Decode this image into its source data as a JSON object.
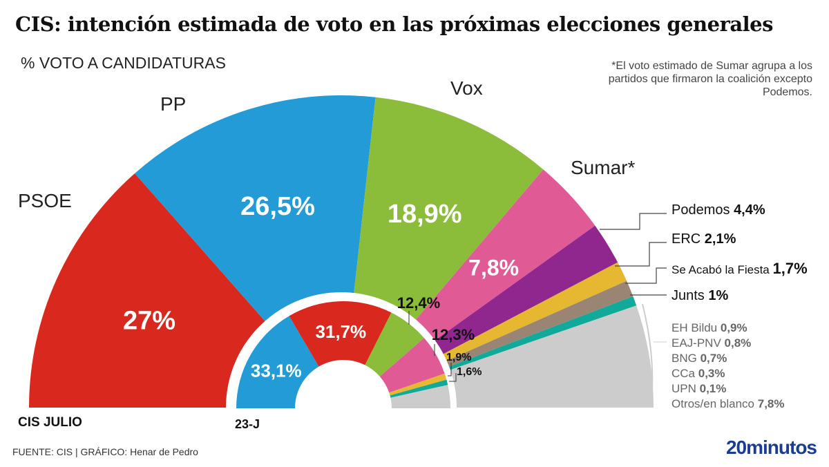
{
  "title": "CIS: intención estimada de voto en las próximas elecciones generales",
  "subtitle": "% VOTO A CANDIDATURAS",
  "note": "*El voto estimado de Sumar agrupa a los partidos que firmaron la coalición excepto Podemos.",
  "footer": "FUENTE: CIS   |  GRÁFICO: Henar de Pedro",
  "brand": "20minutos",
  "chart_data": [
    {
      "type": "pie",
      "variant": "half-donut",
      "label": "CIS JULIO",
      "slices": [
        {
          "name": "PSOE",
          "value": 27,
          "display": "27%",
          "color": "#d9291f"
        },
        {
          "name": "PP",
          "value": 26.5,
          "display": "26,5%",
          "color": "#239bd6"
        },
        {
          "name": "Vox",
          "value": 18.9,
          "display": "18,9%",
          "color": "#8bbd3a"
        },
        {
          "name": "Sumar*",
          "value": 7.8,
          "display": "7,8%",
          "color": "#e05a95"
        },
        {
          "name": "Podemos",
          "value": 4.4,
          "display": "4,4%",
          "color": "#8f278f"
        },
        {
          "name": "ERC",
          "value": 2.1,
          "display": "2,1%",
          "color": "#e6b730"
        },
        {
          "name": "Se Acabó la Fiesta",
          "value": 1.7,
          "display": "1,7%",
          "color": "#9a8575"
        },
        {
          "name": "Junts",
          "value": 1,
          "display": "1%",
          "color": "#10a99a"
        },
        {
          "name": "Otros",
          "value": 10.6,
          "color": "#cccccc"
        }
      ],
      "others_breakdown": [
        {
          "name": "EH Bildu",
          "display": "0,9%"
        },
        {
          "name": "EAJ-PNV",
          "display": "0,8%"
        },
        {
          "name": "BNG",
          "display": "0,7%"
        },
        {
          "name": "CCa",
          "display": "0,3%"
        },
        {
          "name": "UPN",
          "display": "0,1%"
        },
        {
          "name": "Otros/en blanco",
          "display": "7,8%"
        }
      ]
    },
    {
      "type": "pie",
      "variant": "half-donut",
      "label": "23-J",
      "slices": [
        {
          "name": "PP",
          "value": 33.1,
          "display": "33,1%",
          "color": "#239bd6"
        },
        {
          "name": "PSOE",
          "value": 31.7,
          "display": "31,7%",
          "color": "#d9291f"
        },
        {
          "name": "Vox",
          "value": 12.4,
          "display": "12,4%",
          "color": "#8bbd3a"
        },
        {
          "name": "Sumar",
          "value": 12.3,
          "display": "12,3%",
          "color": "#e05a95"
        },
        {
          "name": "ERC",
          "value": 1.9,
          "display": "1,9%",
          "color": "#e6b730"
        },
        {
          "name": "Junts",
          "value": 1.6,
          "display": "1,6%",
          "color": "#10a99a"
        },
        {
          "name": "Otros",
          "value": 7.0,
          "color": "#cccccc"
        }
      ]
    }
  ]
}
